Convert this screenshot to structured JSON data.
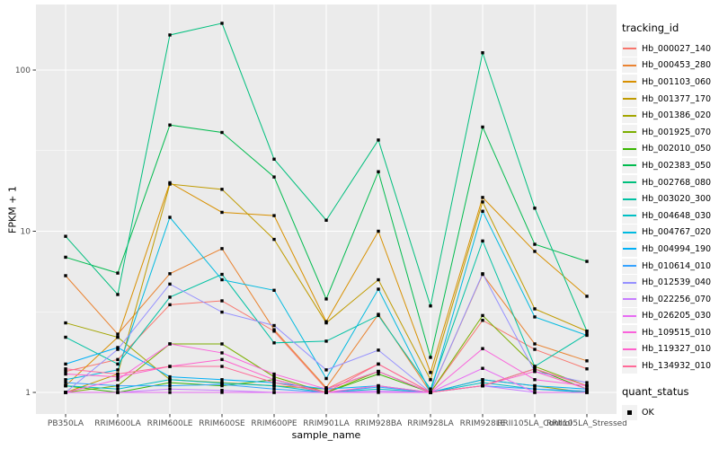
{
  "chart_data": {
    "type": "line",
    "title": "",
    "xlabel": "sample_name",
    "ylabel": "FPKM + 1",
    "y_scale": "log10",
    "ylim": [
      0.93,
      230
    ],
    "y_major_ticks": [
      1,
      10,
      100
    ],
    "y_minor_ticks": [
      3.162,
      31.62
    ],
    "grid": true,
    "panel_bg": "#EBEBEB",
    "grid_color": "#FFFFFF",
    "point_shape": "square",
    "point_color": "#000000",
    "legend_position": "right",
    "categories": [
      "PB350LA",
      "RRIM600LA",
      "RRIM600LE",
      "RRIM600SE",
      "RRIM600PE",
      "RRIM901LA",
      "RRIM928BA",
      "RRIM928LA",
      "RRIM928LE",
      "RRII105LA_Control",
      "RRII105LA_Stressed"
    ],
    "series": [
      {
        "name": "Hb_000027_140",
        "color": "#F8766D",
        "values": [
          1.35,
          1.6,
          3.5,
          3.7,
          2.4,
          1.05,
          1.5,
          1.0,
          2.8,
          1.85,
          1.4
        ]
      },
      {
        "name": "Hb_000453_280",
        "color": "#EA8331",
        "values": [
          5.3,
          2.3,
          5.45,
          7.8,
          2.45,
          1.07,
          3.05,
          1.0,
          5.4,
          2.0,
          1.57
        ]
      },
      {
        "name": "Hb_001103_060",
        "color": "#D89000",
        "values": [
          1.1,
          2.2,
          20.0,
          13.1,
          12.5,
          2.75,
          10.0,
          1.33,
          16.2,
          7.5,
          3.95
        ]
      },
      {
        "name": "Hb_001377_170",
        "color": "#C09B00",
        "values": [
          1.0,
          1.3,
          19.6,
          18.2,
          8.9,
          2.7,
          5.0,
          1.2,
          15.2,
          3.3,
          2.4
        ]
      },
      {
        "name": "Hb_001386_020",
        "color": "#A3A500",
        "values": [
          2.7,
          2.2,
          1.2,
          1.15,
          1.1,
          1.05,
          1.35,
          1.0,
          1.2,
          1.1,
          1.0
        ]
      },
      {
        "name": "Hb_001925_070",
        "color": "#7CAE00",
        "values": [
          1.0,
          1.1,
          2.0,
          2.0,
          1.25,
          1.0,
          1.35,
          1.0,
          3.0,
          1.45,
          1.1
        ]
      },
      {
        "name": "Hb_002010_050",
        "color": "#39B600",
        "values": [
          1.1,
          1.0,
          1.15,
          1.1,
          1.2,
          1.0,
          1.3,
          1.0,
          1.1,
          1.4,
          1.05
        ]
      },
      {
        "name": "Hb_002383_050",
        "color": "#00BB4E",
        "values": [
          6.9,
          5.5,
          45.6,
          41.0,
          21.7,
          3.8,
          23.4,
          1.65,
          44.3,
          8.3,
          6.5
        ]
      },
      {
        "name": "Hb_002768_080",
        "color": "#00BF7D",
        "values": [
          9.3,
          4.05,
          165.0,
          195.0,
          28.0,
          11.7,
          36.8,
          3.44,
          128.0,
          13.9,
          2.4
        ]
      },
      {
        "name": "Hb_003020_300",
        "color": "#00C1A3",
        "values": [
          2.2,
          1.5,
          3.9,
          5.4,
          2.03,
          2.08,
          3.0,
          1.05,
          8.7,
          1.45,
          2.3
        ]
      },
      {
        "name": "Hb_004648_030",
        "color": "#00BFC4",
        "values": [
          1.1,
          1.05,
          1.2,
          1.14,
          1.1,
          1.0,
          1.05,
          1.0,
          1.15,
          1.05,
          1.0
        ]
      },
      {
        "name": "Hb_004767_020",
        "color": "#00BAE0",
        "values": [
          1.2,
          1.38,
          12.2,
          5.0,
          4.3,
          1.22,
          4.37,
          1.0,
          13.3,
          2.94,
          2.26
        ]
      },
      {
        "name": "Hb_004994_190",
        "color": "#00B0F6",
        "values": [
          1.5,
          1.9,
          1.25,
          1.2,
          1.15,
          1.05,
          1.1,
          1.0,
          1.2,
          1.1,
          1.05
        ]
      },
      {
        "name": "Hb_010614_010",
        "color": "#35A2FF",
        "values": [
          1.15,
          1.1,
          1.1,
          1.12,
          1.05,
          1.0,
          1.08,
          1.0,
          1.1,
          1.05,
          1.02
        ]
      },
      {
        "name": "Hb_012539_040",
        "color": "#9590FF",
        "values": [
          1.0,
          1.85,
          4.7,
          3.15,
          2.6,
          1.38,
          1.83,
          1.0,
          5.45,
          1.35,
          1.15
        ]
      },
      {
        "name": "Hb_022256_070",
        "color": "#C77CFF",
        "values": [
          1.0,
          1.0,
          1.05,
          1.03,
          1.0,
          1.0,
          1.02,
          1.0,
          1.1,
          1.0,
          1.0
        ]
      },
      {
        "name": "Hb_026205_030",
        "color": "#E76BF3",
        "values": [
          1.0,
          1.0,
          1.0,
          1.0,
          1.0,
          1.0,
          1.0,
          1.0,
          1.41,
          1.0,
          1.0
        ]
      },
      {
        "name": "Hb_109515_010",
        "color": "#FA62DB",
        "values": [
          1.0,
          1.2,
          2.0,
          1.76,
          1.3,
          1.05,
          1.35,
          1.0,
          1.87,
          1.2,
          1.1
        ]
      },
      {
        "name": "Hb_119327_010",
        "color": "#FF61CC",
        "values": [
          1.3,
          1.25,
          1.45,
          1.6,
          1.2,
          1.0,
          1.1,
          1.0,
          1.1,
          1.35,
          1.05
        ]
      },
      {
        "name": "Hb_134932_010",
        "color": "#FF6A98",
        "values": [
          1.4,
          1.3,
          1.45,
          1.45,
          1.15,
          1.0,
          1.5,
          1.0,
          1.1,
          1.4,
          1.1
        ]
      }
    ]
  },
  "legend": {
    "tracking_title": "tracking_id",
    "quant_title": "quant_status",
    "quant_items": [
      {
        "label": "OK"
      }
    ]
  }
}
